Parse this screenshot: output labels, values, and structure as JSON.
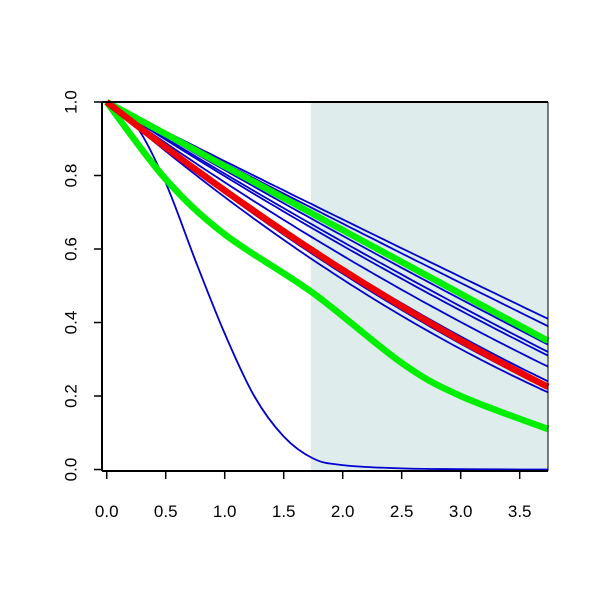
{
  "chart_data": {
    "type": "line",
    "title": "",
    "xlabel": "",
    "ylabel": "",
    "xlim": [
      -0.04,
      3.74
    ],
    "ylim": [
      -0.004,
      1.0
    ],
    "x_ticks": [
      0,
      0.5,
      1,
      1.5,
      2,
      2.5,
      3,
      3.5
    ],
    "x_tick_labels": [
      "0.0",
      "0.5",
      "1.0",
      "1.5",
      "2.0",
      "2.5",
      "3.0",
      "3.5"
    ],
    "y_ticks": [
      0,
      0.2,
      0.4,
      0.6,
      0.8,
      1.0
    ],
    "y_tick_labels": [
      "0.0",
      "0.2",
      "0.4",
      "0.6",
      "0.8",
      "1.0"
    ],
    "grid": false,
    "legend": "none",
    "shaded_region": {
      "x_from": 1.73,
      "x_to": 3.74,
      "color": "#deecec"
    },
    "colors": {
      "blue": "#0000cc",
      "green": "#00ee00",
      "red": "#ee0000"
    },
    "series": [
      {
        "color": "blue",
        "width": "thin",
        "x": [
          0,
          0.25,
          0.5,
          0.75,
          1.0,
          1.25,
          1.5,
          1.75,
          2.0,
          2.5,
          3.0,
          3.5,
          3.74
        ],
        "y": [
          1.0,
          0.935,
          0.78,
          0.57,
          0.37,
          0.2,
          0.09,
          0.03,
          0.012,
          0.003,
          0.001,
          0.0,
          0.0
        ]
      },
      {
        "color": "blue",
        "width": "thin",
        "x": [
          0,
          1.75,
          3.74
        ],
        "y": [
          1.0,
          0.72,
          0.41
        ]
      },
      {
        "color": "blue",
        "width": "thin",
        "x": [
          0,
          1.75,
          3.74
        ],
        "y": [
          1.0,
          0.71,
          0.39
        ]
      },
      {
        "color": "blue",
        "width": "thin",
        "x": [
          0,
          1.75,
          3.74
        ],
        "y": [
          1.0,
          0.68,
          0.34
        ]
      },
      {
        "color": "blue",
        "width": "thin",
        "x": [
          0,
          1.75,
          3.74
        ],
        "y": [
          1.0,
          0.665,
          0.32
        ]
      },
      {
        "color": "blue",
        "width": "thin",
        "x": [
          0,
          1.75,
          3.74
        ],
        "y": [
          1.0,
          0.655,
          0.31
        ]
      },
      {
        "color": "blue",
        "width": "thin",
        "x": [
          0,
          1.75,
          3.74
        ],
        "y": [
          1.0,
          0.63,
          0.28
        ]
      },
      {
        "color": "blue",
        "width": "thin",
        "x": [
          0,
          1.75,
          3.74
        ],
        "y": [
          1.0,
          0.6,
          0.24
        ]
      },
      {
        "color": "blue",
        "width": "thin",
        "x": [
          0,
          1.75,
          3.74
        ],
        "y": [
          1.0,
          0.585,
          0.22
        ]
      },
      {
        "color": "blue",
        "width": "thin",
        "x": [
          0,
          1.75,
          3.74
        ],
        "y": [
          1.0,
          0.57,
          0.21
        ]
      },
      {
        "color": "green",
        "width": "thick",
        "x": [
          0,
          0.5,
          1.0,
          1.75,
          2.5,
          3.0,
          3.74
        ],
        "y": [
          1.0,
          0.79,
          0.64,
          0.48,
          0.29,
          0.2,
          0.11
        ]
      },
      {
        "color": "green",
        "width": "thick",
        "x": [
          0,
          1.75,
          3.74
        ],
        "y": [
          1.0,
          0.695,
          0.35
        ]
      },
      {
        "color": "red",
        "width": "thick",
        "x": [
          0,
          1.75,
          3.74
        ],
        "y": [
          1.0,
          0.595,
          0.225
        ]
      }
    ]
  }
}
